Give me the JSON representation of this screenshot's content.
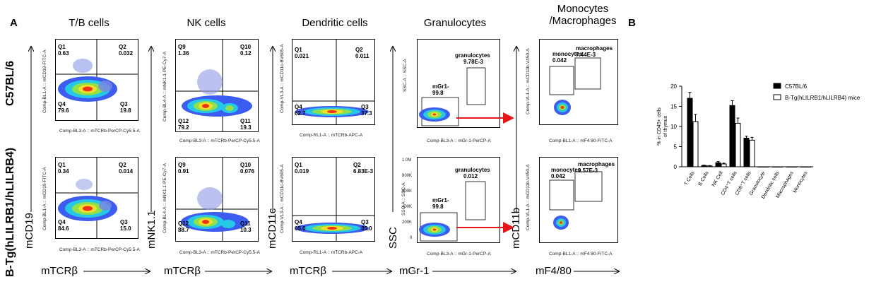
{
  "panel_labels": {
    "a": "A",
    "b": "B"
  },
  "column_titles": [
    "T/B cells",
    "NK cells",
    "Dendritic cells",
    "Granulocytes",
    "Monocytes\n/Macrophages"
  ],
  "row_labels": [
    "C57BL/6",
    "B-Tg(hLILRB1/hLILRB4)"
  ],
  "bottom_axes": [
    "mTCRβ",
    "mTCRβ",
    "mTCRβ",
    "mGr-1",
    "mF4/80"
  ],
  "bottom_row_y_axes": [
    "mCD19",
    "mNK1.1",
    "mCD11c",
    "SSC",
    "mCD11b"
  ],
  "facs": [
    {
      "x_axis": "Comp-BL3-A :: mTCRb-PerCP-Cy5.5-A",
      "y_axis": "Comp-BL1-A :: mCD19-FITC-A",
      "top": [
        [
          "Q1",
          "0.63"
        ],
        [
          "Q2",
          "0.032"
        ],
        [
          "Q4",
          "79.6"
        ],
        [
          "Q3",
          "19.8"
        ]
      ],
      "bottom": [
        [
          "Q1",
          "0.34"
        ],
        [
          "Q2",
          "0.014"
        ],
        [
          "Q4",
          "84.6"
        ],
        [
          "Q3",
          "15.0"
        ]
      ]
    },
    {
      "x_axis": "Comp-BL3-A :: mTCRb-PerCP-Cy5.5-A",
      "y_axis": "Comp-BL4-A :: mNK1.1-PE-Cy7-A",
      "top": [
        [
          "Q9",
          "1.36"
        ],
        [
          "Q10",
          "0.12"
        ],
        [
          "Q12",
          "79.2"
        ],
        [
          "Q11",
          "19.3"
        ]
      ],
      "bottom": [
        [
          "Q9",
          "0.91"
        ],
        [
          "Q10",
          "0.076"
        ],
        [
          "Q12",
          "88.7"
        ],
        [
          "Q11",
          "10.3"
        ]
      ]
    },
    {
      "x_axis": "Comp-RL1-A :: mTCRb-APC-A",
      "y_axis": "Comp-VL3-A :: mCD11c-BV605-A",
      "top": [
        [
          "Q1",
          "0.021"
        ],
        [
          "Q2",
          "0.011"
        ],
        [
          "Q4",
          "62.7"
        ],
        [
          "Q3",
          "37.3"
        ]
      ],
      "bottom": [
        [
          "Q1",
          "0.019"
        ],
        [
          "Q2",
          "6.83E-3"
        ],
        [
          "Q4",
          "65.0"
        ],
        [
          "Q3",
          "35.0"
        ]
      ]
    },
    {
      "x_axis": "Comp-BL3-A :: mGr-1-PerCP-A",
      "y_axis": "SSC-A :: SSC-A",
      "top": [
        [
          "granulocytes",
          "9.78E-3"
        ],
        [
          "mGr1-",
          "99.8"
        ]
      ],
      "bottom": [
        [
          "granulocytes",
          "0.012"
        ],
        [
          "mGr1-",
          "99.8"
        ]
      ]
    },
    {
      "x_axis": "Comp-BL1-A :: mF4 80-FITC-A",
      "y_axis": "Comp-VL1-A :: mCD11b-V450-A",
      "top": [
        [
          "monocytes",
          "0.042"
        ],
        [
          "macrophages",
          "7.44E-3"
        ]
      ],
      "bottom": [
        [
          "monocytes",
          "0.042"
        ],
        [
          "macrophages",
          "9.57E-3"
        ]
      ]
    }
  ],
  "ssc_ticks": [
    "1.0M",
    "800K",
    "600K",
    "400K",
    "200K",
    "0"
  ],
  "chart_data": {
    "type": "bar",
    "categories": [
      "T Cells",
      "B Cells",
      "NK Cell",
      "CD4⁺T cells",
      "CD8⁺T cells",
      "Granulocyte",
      "Dendritic cells",
      "Macrophages",
      "Monocytes"
    ],
    "series": [
      {
        "name": "C57BL/6",
        "color": "#000000",
        "values": [
          17.0,
          0.3,
          1.0,
          15.2,
          7.1,
          0,
          0,
          0,
          0
        ],
        "errors": [
          1.5,
          0.1,
          0.3,
          1.2,
          0.5,
          0,
          0,
          0,
          0
        ]
      },
      {
        "name": "B-Tg(hLILRB1/hLILRB4) mice",
        "color": "#ffffff",
        "values": [
          11.2,
          0.2,
          0.7,
          10.8,
          6.6,
          0,
          0,
          0,
          0
        ],
        "errors": [
          1.8,
          0.1,
          0.2,
          1.3,
          0.7,
          0,
          0,
          0,
          0
        ]
      }
    ],
    "ylabel": "% in CD45+ cells of thymus",
    "ylim": [
      0,
      20
    ],
    "yticks": [
      "0",
      "5",
      "10",
      "15",
      "20"
    ]
  }
}
